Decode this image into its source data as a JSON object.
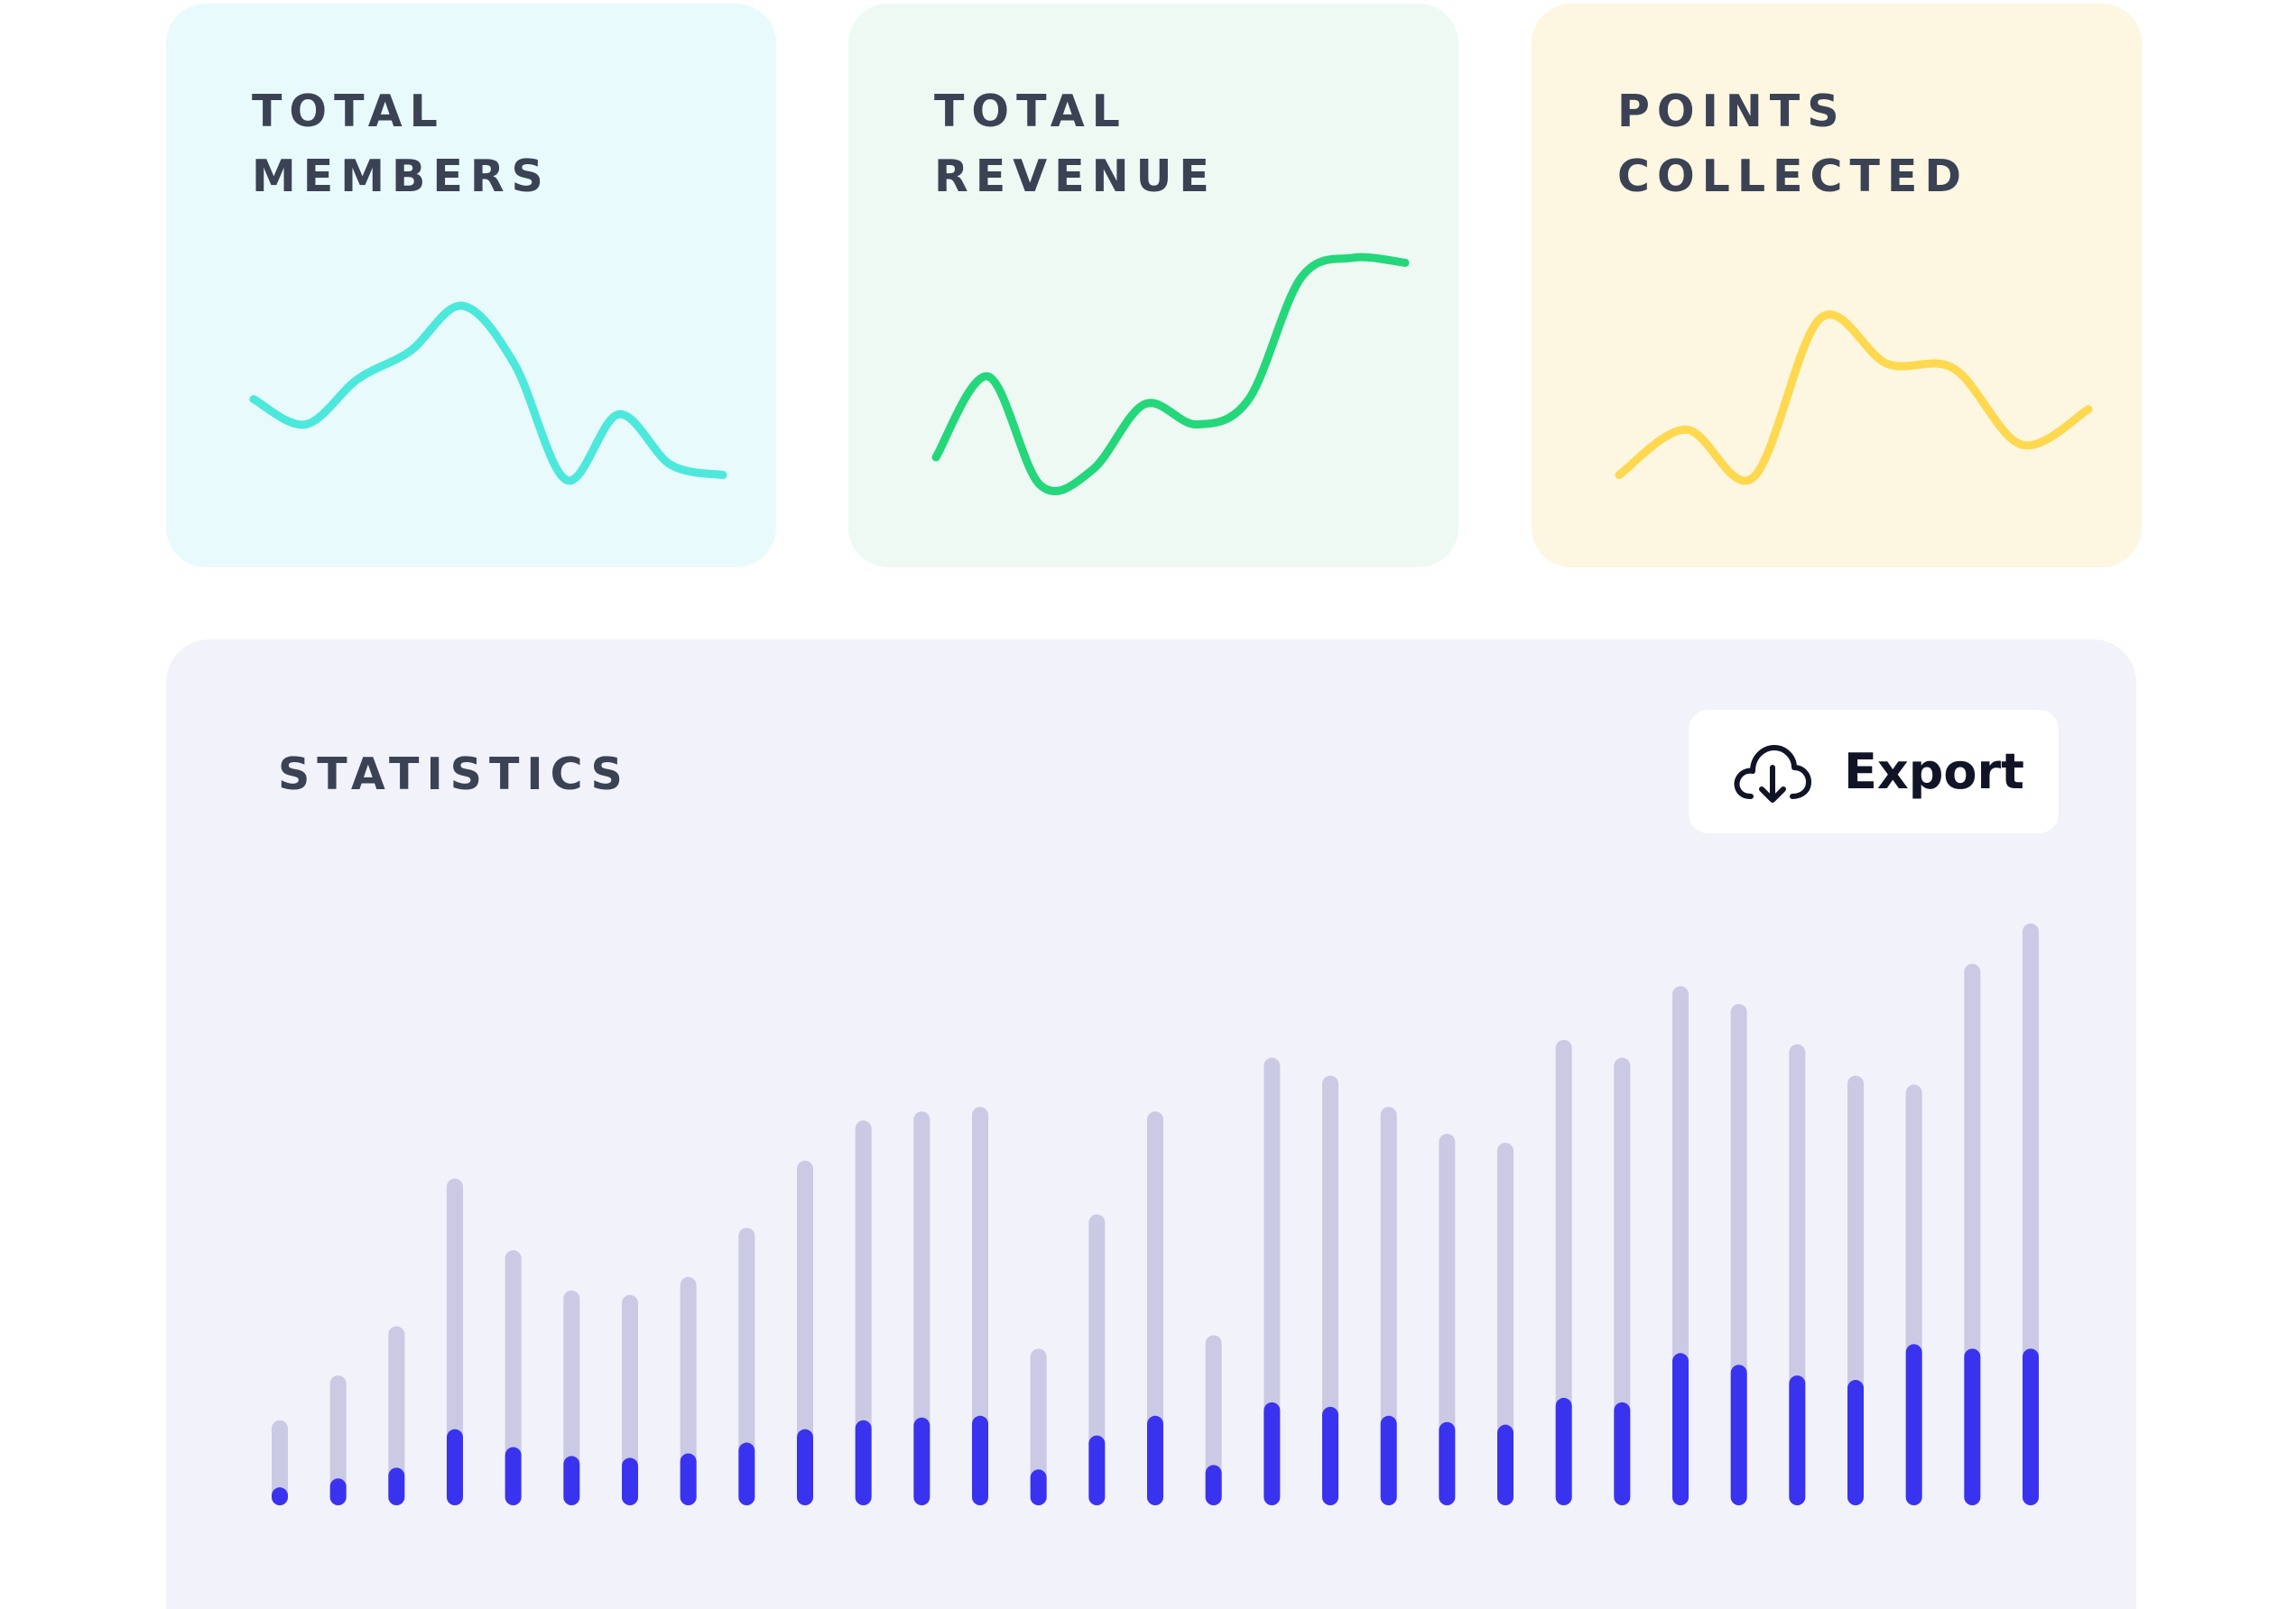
{
  "cards": [
    {
      "title": "TOTAL\nMEMBERS",
      "color": "#4de8dc",
      "background": "#e8fafc",
      "trend": [
        0.38,
        0.28,
        0.46,
        0.57,
        0.75,
        0.52,
        0.06,
        0.32,
        0.12,
        0.08
      ]
    },
    {
      "title": "TOTAL\nREVENUE",
      "color": "#24d77a",
      "background": "#eef9f4",
      "trend": [
        0.15,
        0.47,
        0.04,
        0.1,
        0.36,
        0.28,
        0.38,
        0.86,
        0.94,
        0.92
      ]
    },
    {
      "title": "POINTS\nCOLLECTED",
      "color": "#fed84f",
      "background": "#fdf6e0",
      "trend": [
        0.08,
        0.26,
        0.07,
        0.7,
        0.52,
        0.5,
        0.2,
        0.34
      ]
    }
  ],
  "statistics": {
    "title": "STATISTICS",
    "export_label": "Export",
    "export_icon": "cloud-download-icon"
  },
  "chart_data": {
    "type": "bar",
    "title": "STATISTICS",
    "grid": false,
    "colors": {
      "total": "#cbcae4",
      "highlight": "#3933f0"
    },
    "series": [
      {
        "values": [
          95,
          145,
          200,
          365,
          285,
          240,
          235,
          255,
          310,
          385,
          430,
          440,
          445,
          175,
          325,
          440,
          190,
          500,
          480,
          445,
          415,
          405,
          520,
          500,
          580,
          560,
          515,
          480,
          470,
          605,
          650
        ]
      },
      {
        "values": [
          20,
          30,
          42,
          85,
          65,
          55,
          53,
          58,
          70,
          85,
          95,
          98,
          100,
          40,
          78,
          100,
          45,
          115,
          110,
          100,
          93,
          90,
          120,
          115,
          170,
          157,
          145,
          140,
          180,
          175,
          175
        ]
      }
    ],
    "ylim": [
      0,
      660
    ]
  }
}
